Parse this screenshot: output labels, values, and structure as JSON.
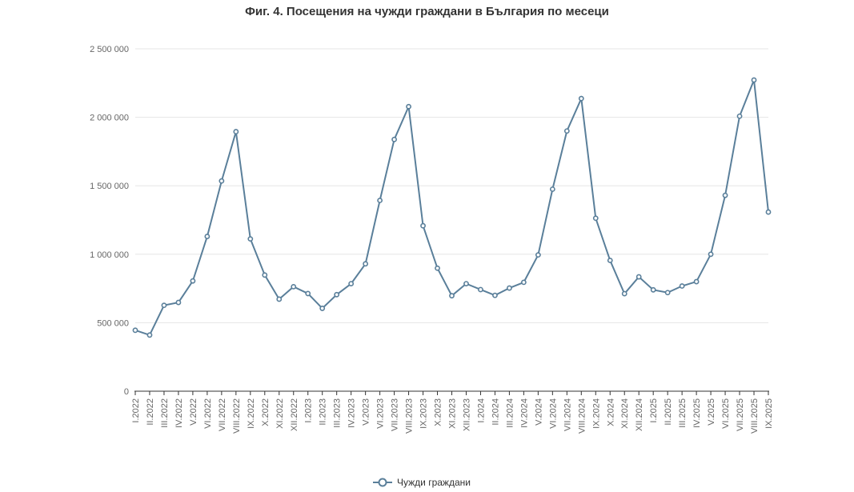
{
  "chart_data": {
    "type": "line",
    "title": "Фиг. 4. Посещения на чужди граждани в България по месеци",
    "xlabel": "",
    "ylabel": "",
    "ylim": [
      0,
      2500000
    ],
    "yticks": [
      0,
      500000,
      1000000,
      1500000,
      2000000,
      2500000
    ],
    "ytick_labels": [
      "0",
      "500 000",
      "1 000 000",
      "1 500 000",
      "2 000 000",
      "2 500 000"
    ],
    "grid": true,
    "legend": "bottom",
    "categories": [
      "I.2022",
      "II.2022",
      "III.2022",
      "IV.2022",
      "V.2022",
      "VI.2022",
      "VII.2022",
      "VIII.2022",
      "IX.2022",
      "X.2022",
      "XI.2022",
      "XII.2022",
      "I.2023",
      "II.2023",
      "III.2023",
      "IV.2023",
      "V.2023",
      "VI.2023",
      "VII.2023",
      "VIII.2023",
      "IX.2023",
      "X.2023",
      "XI.2023",
      "XII.2023",
      "I.2024",
      "II.2024",
      "III.2024",
      "IV.2024",
      "V.2024",
      "VI.2024",
      "VII.2024",
      "VIII.2024",
      "IX.2024",
      "X.2024",
      "XI.2024",
      "XII.2024",
      "I.2025",
      "II.2025",
      "III.2025",
      "IV.2025",
      "V.2025",
      "VI.2025",
      "VII.2025",
      "VIII.2025",
      "IX.2025"
    ],
    "series": [
      {
        "name": "Чужди граждани",
        "color": "#5a7f9a",
        "values": [
          445000,
          410000,
          627000,
          648000,
          805000,
          1130000,
          1535000,
          1895000,
          1112000,
          848000,
          672000,
          763000,
          713000,
          605000,
          705000,
          785000,
          930000,
          1393000,
          1838000,
          2078000,
          1208000,
          898000,
          697000,
          785000,
          742000,
          700000,
          753000,
          795000,
          995000,
          1475000,
          1900000,
          2137000,
          1263000,
          955000,
          712000,
          835000,
          740000,
          720000,
          768000,
          800000,
          1000000,
          1430000,
          2008000,
          2272000,
          1308000
        ]
      }
    ]
  }
}
